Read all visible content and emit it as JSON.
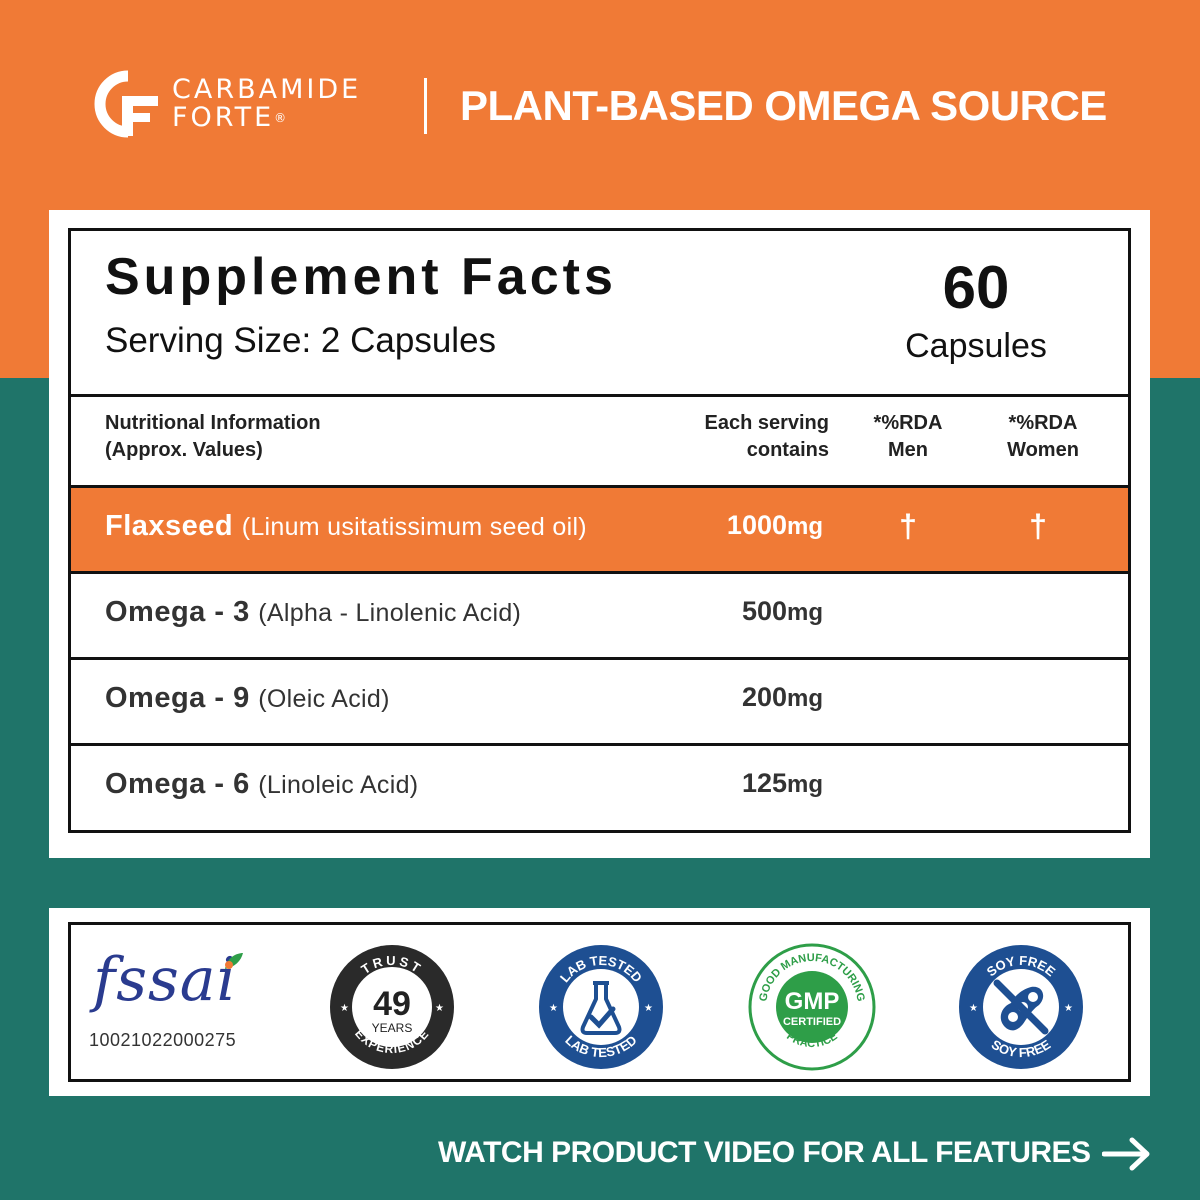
{
  "header": {
    "brand_line1": "CARBAMIDE",
    "brand_line2": "FORTE",
    "brand_reg": "®",
    "tagline": "PLANT-BASED OMEGA SOURCE",
    "logo_icon": "cf-monogram-icon"
  },
  "facts": {
    "title": "Supplement Facts",
    "serving_size": "Serving Size: 2 Capsules",
    "count": "60",
    "count_label": "Capsules",
    "columns": [
      {
        "line1": "Nutritional Information",
        "line2": "(Approx. Values)"
      },
      {
        "line1": "Each serving",
        "line2": "contains"
      },
      {
        "line1": "*%RDA",
        "line2": "Men"
      },
      {
        "line1": "*%RDA",
        "line2": "Women"
      }
    ],
    "rows": [
      {
        "name": "Flaxseed",
        "sub": "(Linum usitatissimum seed oil)",
        "amount": "1000",
        "unit": "mg",
        "rda_men": "†",
        "rda_women": "†",
        "highlight": true
      },
      {
        "name": "Omega - 3",
        "sub": "(Alpha - Linolenic Acid)",
        "amount": "500",
        "unit": "mg",
        "rda_men": "",
        "rda_women": ""
      },
      {
        "name": "Omega - 9",
        "sub": "(Oleic Acid)",
        "amount": "200",
        "unit": "mg",
        "rda_men": "",
        "rda_women": ""
      },
      {
        "name": "Omega - 6",
        "sub": "(Linoleic Acid)",
        "amount": "125",
        "unit": "mg",
        "rda_men": "",
        "rda_women": ""
      }
    ]
  },
  "badges": {
    "fssai_word": "fssai",
    "fssai_number": "10021022000275",
    "trust_top": "TRUST",
    "trust_number": "49",
    "trust_years": "YEARS",
    "trust_bottom": "EXPERIENCE",
    "lab_top": "LAB TESTED",
    "lab_bottom": "LAB TESTED",
    "gmp_arc": "GOOD MANUFACTURING",
    "gmp_main": "GMP",
    "gmp_sub": "CERTIFIED",
    "gmp_bottom": "PRACTICE",
    "soy_top": "SOY FREE",
    "soy_bottom": "SOY FREE"
  },
  "footer": {
    "text": "WATCH PRODUCT VIDEO FOR ALL FEATURES",
    "arrow_icon": "arrow-right-icon"
  },
  "colors": {
    "orange": "#f07a36",
    "teal": "#1f7469",
    "navy_badge": "#1e4f92",
    "gmp_green": "#2e9e48",
    "trust_dark": "#2a2a2a"
  }
}
